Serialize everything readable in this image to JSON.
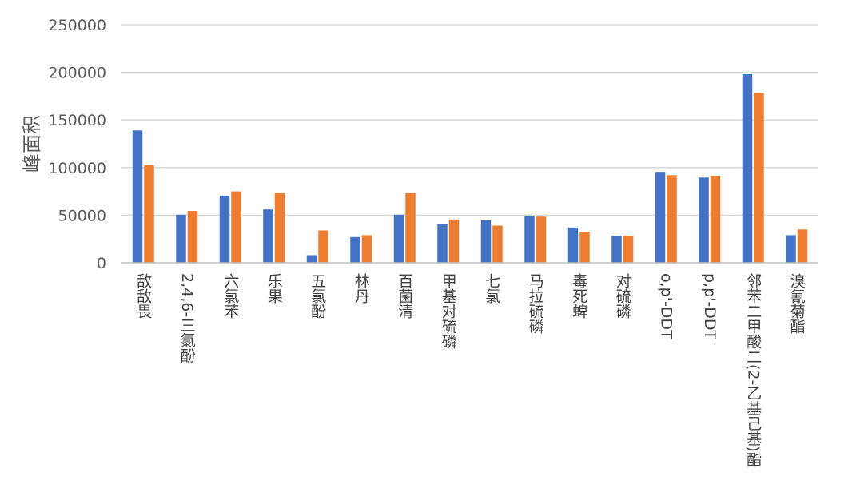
{
  "chart_data": {
    "type": "bar",
    "title": "",
    "xlabel": "",
    "ylabel": "峰面积",
    "ylim": [
      0,
      250000
    ],
    "yticks": [
      0,
      50000,
      100000,
      150000,
      200000,
      250000
    ],
    "grid": true,
    "legend": "none",
    "categories": [
      "敌敌畏",
      "2,4,6-三氯酚",
      "六氯苯",
      "乐果",
      "五氯酚",
      "林丹",
      "百菌清",
      "甲基对硫磷",
      "七氯",
      "马拉硫磷",
      "毒死蜱",
      "对硫磷",
      "o,p'-DDT",
      "p,p'-DDT",
      "邻苯二甲酸二(2-乙基己基)酯",
      "溴氰菊酯"
    ],
    "series": [
      {
        "color": "#4472C4",
        "values": [
          139000,
          50500,
          70500,
          56000,
          8000,
          27000,
          50500,
          40500,
          44500,
          49500,
          37000,
          28500,
          95500,
          89500,
          198000,
          29000
        ]
      },
      {
        "color": "#ED7D31",
        "values": [
          102500,
          54500,
          75000,
          73000,
          34000,
          29000,
          73000,
          45500,
          39000,
          48500,
          32500,
          28500,
          92000,
          91500,
          178500,
          35000
        ]
      }
    ]
  }
}
